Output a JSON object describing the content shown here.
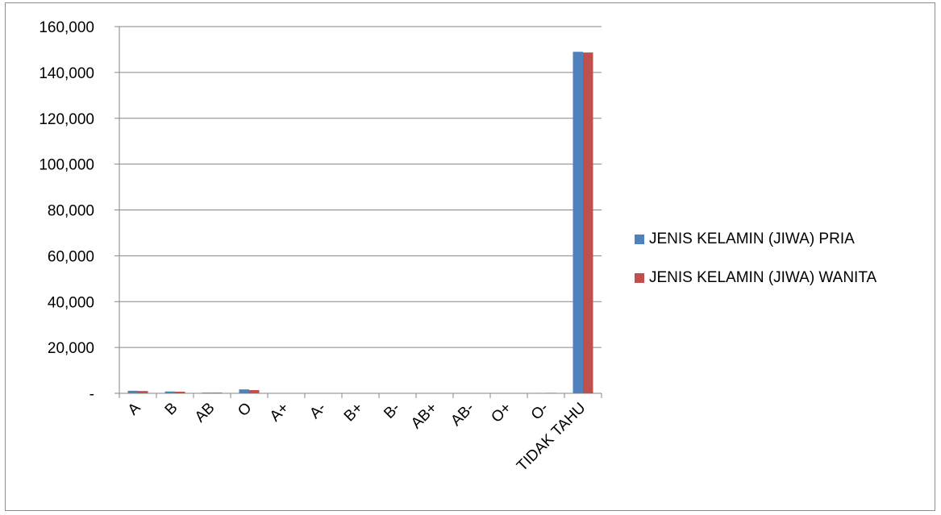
{
  "chart_data": {
    "type": "bar",
    "categories": [
      "A",
      "B",
      "AB",
      "O",
      "A+",
      "A-",
      "B+",
      "B-",
      "AB+",
      "AB-",
      "O+",
      "O-",
      "TIDAK TAHU"
    ],
    "series": [
      {
        "name": "JENIS KELAMIN (JIWA) PRIA",
        "color": "#4f81bd",
        "values": [
          1100,
          800,
          300,
          1700,
          50,
          30,
          40,
          30,
          20,
          10,
          40,
          150,
          149000
        ]
      },
      {
        "name": "JENIS KELAMIN (JIWA) WANITA",
        "color": "#c0504d",
        "values": [
          1000,
          700,
          300,
          1400,
          40,
          30,
          30,
          30,
          20,
          10,
          30,
          200,
          148700
        ]
      }
    ],
    "y_ticks": [
      {
        "value": 0,
        "label": "-"
      },
      {
        "value": 20000,
        "label": "20,000"
      },
      {
        "value": 40000,
        "label": "40,000"
      },
      {
        "value": 60000,
        "label": "60,000"
      },
      {
        "value": 80000,
        "label": "80,000"
      },
      {
        "value": 100000,
        "label": "100,000"
      },
      {
        "value": 120000,
        "label": "120,000"
      },
      {
        "value": 140000,
        "label": "140,000"
      },
      {
        "value": 160000,
        "label": "160,000"
      }
    ],
    "ylim": [
      0,
      160000
    ],
    "grid": true,
    "legend_position": "right"
  }
}
